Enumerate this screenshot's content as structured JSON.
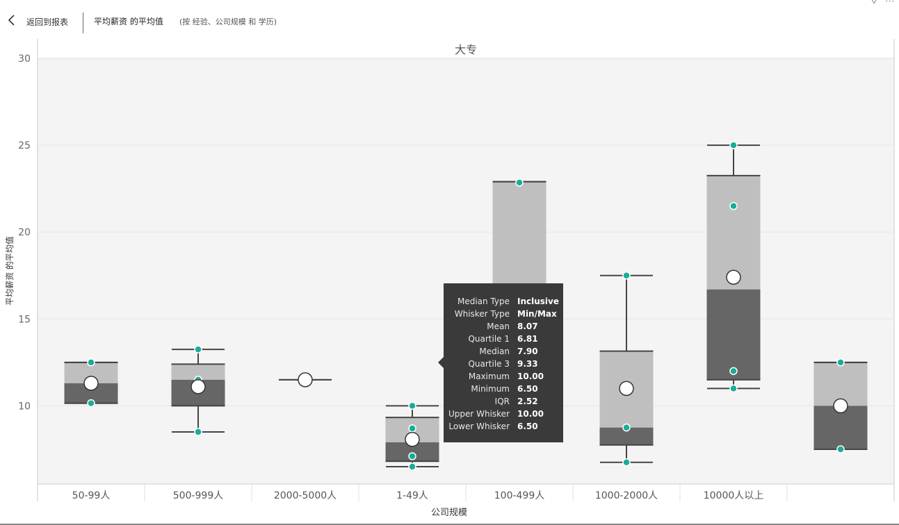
{
  "header": {
    "back_label": "返回到报表",
    "title": "平均薪资 的平均值",
    "subtitle": "(按 经验、公司规模 和 学历)"
  },
  "chart_data": {
    "type": "box",
    "title": "大专",
    "xlabel": "公司规模",
    "ylabel": "平均薪资 的平均值",
    "ylim": [
      5.5,
      30
    ],
    "yticks": [
      10,
      15,
      20,
      25,
      30
    ],
    "categories": [
      "50-99人",
      "500-999人",
      "2000-5000人",
      "1-49人",
      "100-499人",
      "1000-2000人",
      "10000人以上",
      ""
    ],
    "boxes": [
      {
        "min": 10.15,
        "q1": 10.15,
        "median": 11.3,
        "q3": 12.5,
        "max": 12.5,
        "mean": 11.3,
        "points": [
          12.5,
          10.15
        ]
      },
      {
        "min": 8.5,
        "q1": 10.0,
        "median": 11.5,
        "q3": 12.4,
        "max": 13.25,
        "mean": 11.1,
        "points": [
          13.25,
          11.5,
          8.5
        ]
      },
      {
        "min": 11.5,
        "q1": 11.5,
        "median": 11.5,
        "q3": 11.5,
        "max": 11.5,
        "mean": 11.5,
        "points": []
      },
      {
        "min": 6.5,
        "q1": 6.81,
        "median": 7.9,
        "q3": 9.33,
        "max": 10.0,
        "mean": 8.07,
        "points": [
          10.0,
          8.7,
          7.1,
          6.5
        ]
      },
      {
        "min": 10.5,
        "q1": 10.5,
        "median": 16.6,
        "q3": 22.9,
        "max": 22.9,
        "mean": 16.6,
        "points": [
          22.85
        ]
      },
      {
        "min": 6.75,
        "q1": 7.75,
        "median": 8.75,
        "q3": 13.15,
        "max": 17.5,
        "mean": 11.0,
        "points": [
          17.5,
          8.75,
          6.75
        ]
      },
      {
        "min": 11.0,
        "q1": 11.5,
        "median": 16.7,
        "q3": 23.25,
        "max": 25.0,
        "mean": 17.4,
        "points": [
          25.0,
          21.5,
          12.0,
          11.0
        ]
      },
      {
        "min": 7.5,
        "q1": 7.5,
        "median": 10.0,
        "q3": 12.5,
        "max": 12.5,
        "mean": 10.0,
        "points": [
          12.5,
          7.5
        ]
      }
    ],
    "colors": {
      "upper_box": "#bfbfbf",
      "lower_box": "#666666",
      "points": "#1aab9b",
      "mean": "#ffffff",
      "plot_bg": "#f4f4f4"
    },
    "tooltip": {
      "category_index": 3,
      "rows": [
        {
          "label": "Median Type",
          "value": "Inclusive"
        },
        {
          "label": "Whisker Type",
          "value": "Min/Max"
        },
        {
          "label": "Mean",
          "value": "8.07"
        },
        {
          "label": "Quartile 1",
          "value": "6.81"
        },
        {
          "label": "Median",
          "value": "7.90"
        },
        {
          "label": "Quartile 3",
          "value": "9.33"
        },
        {
          "label": "Maximum",
          "value": "10.00"
        },
        {
          "label": "Minimum",
          "value": "6.50"
        },
        {
          "label": "IQR",
          "value": "2.52"
        },
        {
          "label": "Upper Whisker",
          "value": "10.00"
        },
        {
          "label": "Lower Whisker",
          "value": "6.50"
        }
      ]
    }
  }
}
